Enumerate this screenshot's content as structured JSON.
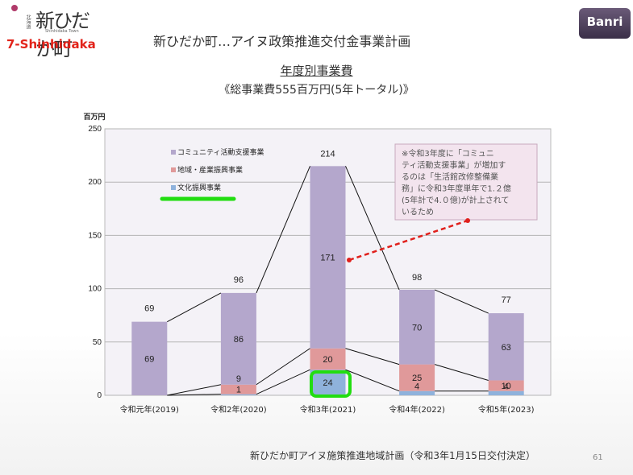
{
  "header": {
    "logo_text": "新ひだか町",
    "logo_sub": "北海道",
    "logo_en": "Shinhidaka Town",
    "brand": "7-Shinhidaka",
    "title": "新ひだか町…アイヌ政策推進交付金事業計画",
    "corp_logo": "Banri"
  },
  "subtitle": "年度別事業費",
  "subtitle2": "《総事業費555百万円(5年トータル)》",
  "footer": "新ひだか町アイヌ施策推進地域計画（令和3年1月15日交付決定）",
  "page_number": "61",
  "note": [
    "※令和3年度に「コミュニ",
    "ティ活動支援事業」が増加す",
    "るのは「生活館改修整備業",
    "務」に令和3年度単年で1.２億",
    "(5年計で4.０億)が計上されて",
    "いるため"
  ],
  "colors": {
    "community": "#b4a7cc",
    "regional": "#e0999a",
    "culture": "#8fb2dc",
    "highlight": "#22dd11",
    "arrow": "#e0201c"
  },
  "chart_data": {
    "type": "bar",
    "stacked": true,
    "ylabel": "百万円",
    "ylim": [
      0,
      250
    ],
    "yticks": [
      0,
      50,
      100,
      150,
      200,
      250
    ],
    "categories": [
      "令和元年(2019)",
      "令和2年(2020)",
      "令和3年(2021)",
      "令和4年(2022)",
      "令和5年(2023)"
    ],
    "series": [
      {
        "name": "文化振興事業",
        "values": [
          0,
          1,
          24,
          4,
          4
        ],
        "labels": [
          "",
          "1",
          "24",
          "4",
          "4"
        ]
      },
      {
        "name": "地域・産業振興事業",
        "values": [
          0,
          9,
          20,
          25,
          10
        ],
        "labels": [
          "",
          "9",
          "20",
          "25",
          "10"
        ]
      },
      {
        "name": "コミュニティ活動支援事業",
        "values": [
          69,
          86,
          171,
          70,
          63
        ],
        "labels": [
          "69",
          "86",
          "171",
          "70",
          "63"
        ]
      }
    ],
    "totals": [
      69,
      96,
      214,
      98,
      77
    ],
    "legend_position": "top-left",
    "grid": true
  }
}
